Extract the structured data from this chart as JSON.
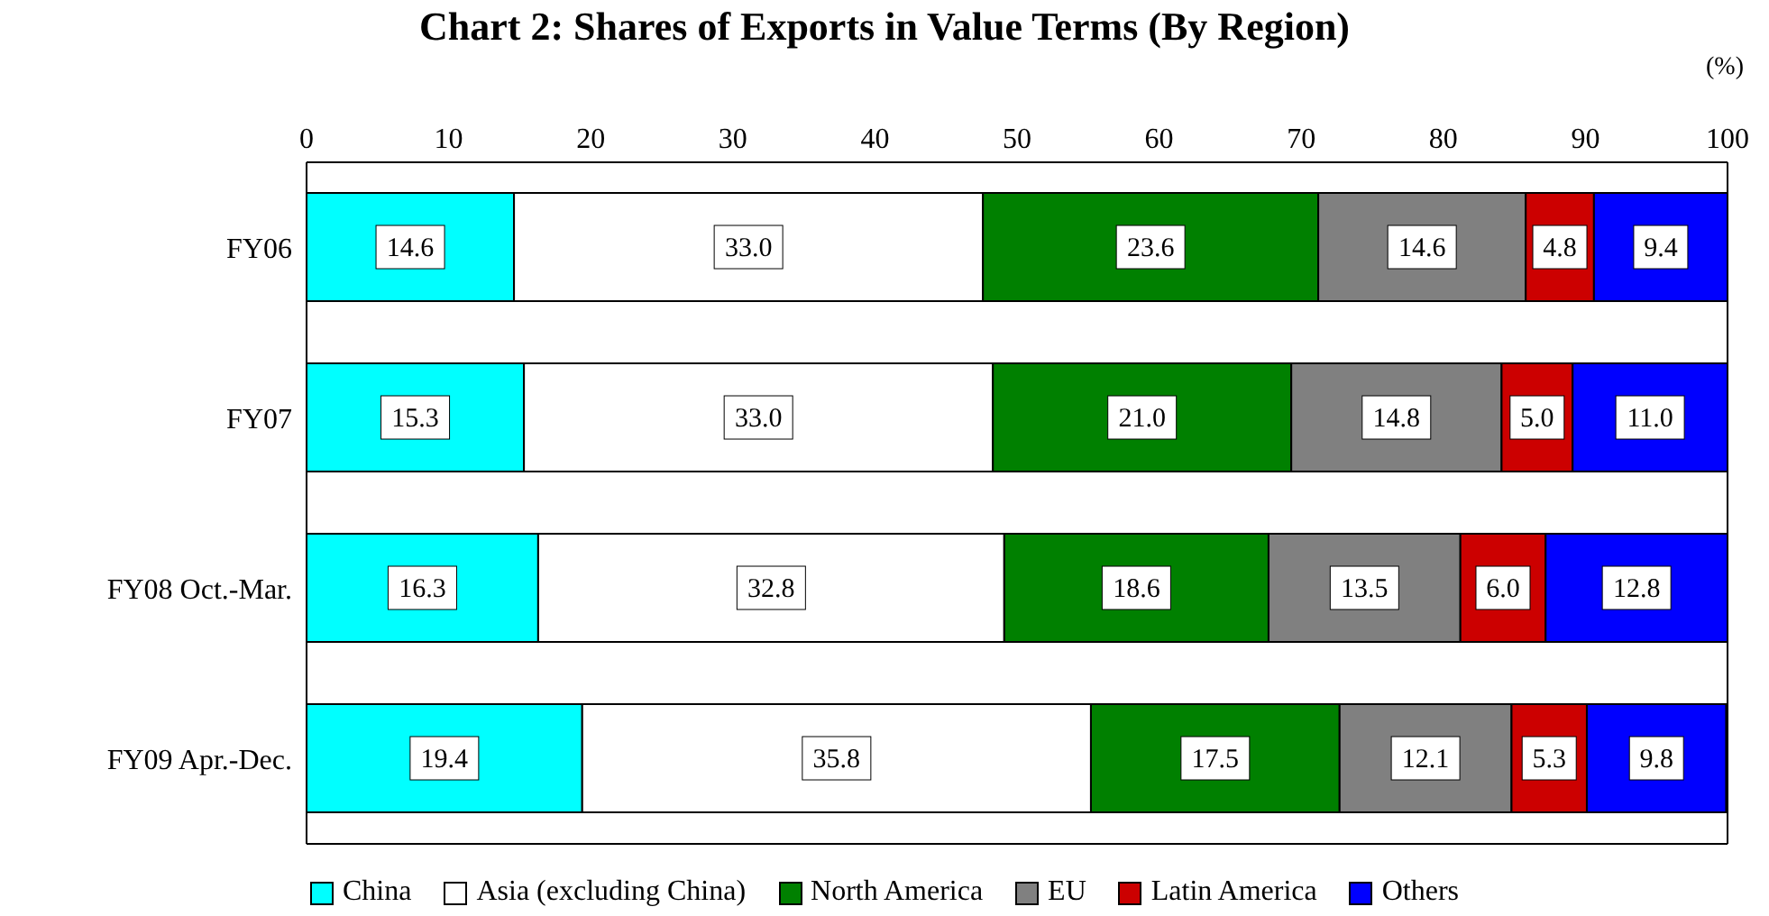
{
  "chart_data": {
    "type": "bar",
    "orientation": "horizontal",
    "stacked": true,
    "title": "Chart 2: Shares of Exports in Value Terms (By Region)",
    "annotations": [
      "(%)"
    ],
    "categories": [
      "FY06",
      "FY07",
      "FY08 Oct.-Mar.",
      "FY09 Apr.-Dec."
    ],
    "series": [
      {
        "name": "China",
        "color": "#00ffff",
        "values": [
          14.6,
          15.3,
          16.3,
          19.4
        ],
        "value_labels": [
          "14.6",
          "15.3",
          "16.3",
          "19.4"
        ]
      },
      {
        "name": "Asia (excluding China)",
        "color": "#ffffff",
        "values": [
          33.0,
          33.0,
          32.8,
          35.8
        ],
        "value_labels": [
          "33.0",
          "33.0",
          "32.8",
          "35.8"
        ]
      },
      {
        "name": "North America",
        "color": "#008000",
        "values": [
          23.6,
          21.0,
          18.6,
          17.5
        ],
        "value_labels": [
          "23.6",
          "21.0",
          "18.6",
          "17.5"
        ]
      },
      {
        "name": "EU",
        "color": "#808080",
        "values": [
          14.6,
          14.8,
          13.5,
          12.1
        ],
        "value_labels": [
          "14.6",
          "14.8",
          "13.5",
          "12.1"
        ]
      },
      {
        "name": "Latin America",
        "color": "#cc0000",
        "values": [
          4.8,
          5.0,
          6.0,
          5.3
        ],
        "value_labels": [
          "4.8",
          "5.0",
          "6.0",
          "5.3"
        ]
      },
      {
        "name": "Others",
        "color": "#0000ff",
        "values": [
          9.4,
          11.0,
          12.8,
          9.8
        ],
        "value_labels": [
          "9.4",
          "11.0",
          "12.8",
          "9.8"
        ]
      }
    ],
    "xlim": [
      0,
      100
    ],
    "xticks": [
      0,
      10,
      20,
      30,
      40,
      50,
      60,
      70,
      80,
      90,
      100
    ],
    "grid": false,
    "legend": "bottom"
  }
}
